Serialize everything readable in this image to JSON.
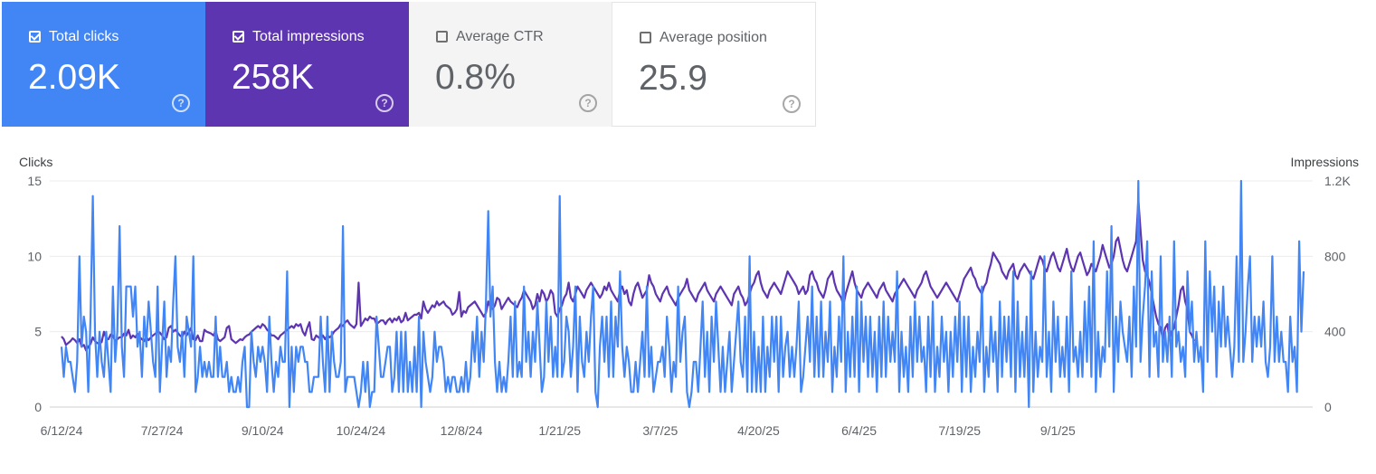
{
  "metrics": [
    {
      "label": "Total clicks",
      "value": "2.09K",
      "checked": true,
      "color": "#4285f4"
    },
    {
      "label": "Total impressions",
      "value": "258K",
      "checked": true,
      "color": "#5e35b1"
    },
    {
      "label": "Average CTR",
      "value": "0.8%",
      "checked": false,
      "color": "#f4f4f4"
    },
    {
      "label": "Average position",
      "value": "25.9",
      "checked": false,
      "color": "#ffffff"
    }
  ],
  "help_glyph": "?",
  "chart_data": {
    "type": "line",
    "title": "",
    "ylabel": "Clicks",
    "y2label": "Impressions",
    "ylim": [
      0,
      15
    ],
    "y2lim": [
      0,
      1200
    ],
    "yticks": [
      "0",
      "5",
      "10",
      "15"
    ],
    "y2ticks": [
      "0",
      "400",
      "800",
      "1.2K"
    ],
    "x_tick_labels": [
      "6/12/24",
      "7/27/24",
      "9/10/24",
      "10/24/24",
      "12/8/24",
      "1/21/25",
      "3/7/25",
      "4/20/25",
      "6/4/25",
      "7/19/25",
      "9/1/25"
    ],
    "x_tick_index": [
      0,
      45,
      90,
      134,
      179,
      223,
      268,
      312,
      357,
      402,
      446
    ],
    "series": [
      {
        "name": "Clicks",
        "axis": "left",
        "color": "#4285f4",
        "values": [
          4,
          2,
          4,
          3,
          3,
          2,
          1,
          3,
          10,
          4,
          6,
          5,
          1,
          6,
          14,
          5,
          2,
          5,
          3,
          2,
          5,
          3,
          1,
          8,
          3,
          5,
          12,
          4,
          2,
          8,
          8,
          8,
          6,
          8,
          4,
          5,
          2,
          6,
          4,
          7,
          5,
          3,
          2,
          8,
          1,
          4,
          7,
          2,
          4,
          3,
          7,
          10,
          4,
          3,
          5,
          2,
          6,
          5,
          4,
          10,
          1,
          2,
          4,
          2,
          3,
          2,
          3,
          2,
          2,
          6,
          2,
          4,
          2,
          2,
          3,
          1,
          2,
          1,
          1,
          2,
          1,
          3,
          4,
          0,
          0,
          5,
          3,
          2,
          4,
          3,
          4,
          3,
          1,
          6,
          3,
          1,
          3,
          2,
          4,
          3,
          3,
          9,
          0,
          4,
          1,
          4,
          3,
          4,
          4,
          3,
          3,
          1,
          1,
          2,
          2,
          2,
          6,
          3,
          1,
          6,
          1,
          5,
          3,
          2,
          2,
          3,
          12,
          1,
          2,
          2,
          2,
          2,
          1,
          0,
          1,
          3,
          1,
          3,
          0,
          1,
          1,
          6,
          4,
          2,
          2,
          3,
          4,
          4,
          1,
          2,
          5,
          1,
          5,
          1,
          5,
          1,
          3,
          1,
          4,
          1,
          6,
          0,
          5,
          3,
          2,
          1,
          2,
          5,
          3,
          4,
          4,
          3,
          1,
          2,
          1,
          2,
          2,
          1,
          1,
          2,
          1,
          3,
          1,
          2,
          5,
          3,
          6,
          2,
          5,
          3,
          7,
          13,
          6,
          8,
          3,
          1,
          3,
          1,
          2,
          1,
          3,
          6,
          2,
          7,
          2,
          3,
          2,
          8,
          3,
          5,
          2,
          5,
          3,
          7,
          4,
          1,
          2,
          7,
          3,
          6,
          2,
          4,
          2,
          14,
          2,
          3,
          6,
          5,
          2,
          4,
          8,
          1,
          6,
          3,
          2,
          5,
          3,
          6,
          8,
          1,
          0,
          4,
          6,
          3,
          6,
          2,
          7,
          2,
          6,
          4,
          9,
          4,
          2,
          4,
          3,
          1,
          1,
          3,
          1,
          3,
          5,
          2,
          8,
          2,
          4,
          1,
          2,
          3,
          3,
          4,
          2,
          6,
          4,
          1,
          3,
          2,
          8,
          3,
          5,
          6,
          1,
          0,
          1,
          3,
          3,
          1,
          4,
          7,
          2,
          5,
          1,
          6,
          3,
          7,
          4,
          1,
          4,
          1,
          3,
          5,
          1,
          3,
          5,
          7,
          3,
          2,
          6,
          1,
          10,
          1,
          5,
          1,
          4,
          1,
          6,
          1,
          4,
          2,
          6,
          3,
          6,
          1,
          6,
          2,
          4,
          5,
          2,
          4,
          2,
          4,
          7,
          1,
          2,
          4,
          6,
          3,
          8,
          2,
          6,
          2,
          7,
          2,
          5,
          3,
          7,
          1,
          4,
          2,
          6,
          3,
          10,
          1,
          5,
          2,
          6,
          2,
          8,
          1,
          7,
          3,
          6,
          2,
          6,
          2,
          5,
          1,
          6,
          2,
          7,
          2,
          6,
          3,
          5,
          3,
          9,
          1,
          5,
          2,
          4,
          1,
          6,
          2,
          7,
          3,
          6,
          3,
          4,
          1,
          6,
          2,
          7,
          1,
          4,
          2,
          6,
          3,
          5,
          1,
          5,
          2,
          6,
          3,
          7,
          1,
          6,
          2,
          6,
          1,
          4,
          2,
          5,
          3,
          8,
          1,
          4,
          2,
          6,
          3,
          5,
          1,
          7,
          2,
          6,
          3,
          6,
          2,
          9,
          1,
          7,
          2,
          5,
          2,
          6,
          0,
          9,
          1,
          5,
          2,
          4,
          3,
          10,
          2,
          5,
          1,
          7,
          3,
          6,
          2,
          4,
          2,
          6,
          1,
          9,
          3,
          4,
          2,
          5,
          2,
          7,
          3,
          8,
          2,
          11,
          1,
          5,
          2,
          4,
          3,
          9,
          4,
          12,
          1,
          6,
          3,
          7,
          5,
          4,
          3,
          6,
          2,
          8,
          4,
          15,
          3,
          6,
          8,
          11,
          2,
          9,
          4,
          5,
          2,
          10,
          3,
          5,
          3,
          6,
          2,
          11,
          4,
          5,
          3,
          4,
          2,
          9,
          5,
          7,
          3,
          5,
          3,
          4,
          1,
          11,
          3,
          9,
          5,
          8,
          2,
          7,
          4,
          8,
          4,
          6,
          4,
          2,
          4,
          10,
          3,
          15,
          3,
          5,
          8,
          10,
          3,
          6,
          4,
          6,
          4,
          7,
          3,
          2,
          4,
          10,
          3,
          6,
          3,
          5,
          3,
          3,
          1,
          6,
          3,
          4,
          1,
          11,
          5,
          9
        ]
      },
      {
        "name": "Impressions",
        "axis": "right",
        "color": "#5e35b1",
        "values": [
          375,
          360,
          330,
          340,
          350,
          365,
          355,
          340,
          360,
          320,
          330,
          300,
          320,
          335,
          370,
          350,
          340,
          335,
          345,
          400,
          365,
          360,
          385,
          380,
          350,
          360,
          370,
          370,
          390,
          380,
          410,
          365,
          380,
          370,
          390,
          370,
          360,
          350,
          370,
          355,
          370,
          380,
          390,
          400,
          395,
          380,
          360,
          370,
          420,
          430,
          400,
          410,
          395,
          380,
          370,
          400,
          380,
          400,
          420,
          360,
          355,
          380,
          350,
          350,
          410,
          400,
          395,
          390,
          380,
          405,
          360,
          350,
          360,
          370,
          420,
          430,
          360,
          350,
          340,
          350,
          360,
          355,
          370,
          380,
          385,
          400,
          410,
          420,
          430,
          420,
          440,
          430,
          410,
          400,
          380,
          380,
          370,
          360,
          380,
          390,
          400,
          410,
          420,
          430,
          420,
          440,
          430,
          440,
          400,
          380,
          420,
          450,
          360,
          355,
          380,
          370,
          360,
          380,
          360,
          380,
          370,
          380,
          400,
          410,
          420,
          440,
          430,
          450,
          460,
          440,
          430,
          420,
          440,
          660,
          430,
          450,
          470,
          460,
          480,
          470,
          470,
          440,
          450,
          460,
          460,
          440,
          460,
          470,
          450,
          470,
          460,
          480,
          450,
          460,
          500,
          460,
          470,
          480,
          490,
          490,
          500,
          470,
          560,
          520,
          500,
          520,
          540,
          530,
          560,
          540,
          550,
          560,
          540,
          530,
          520,
          490,
          500,
          520,
          610,
          480,
          510,
          500,
          530,
          540,
          550,
          560,
          540,
          520,
          500,
          480,
          500,
          560,
          530,
          520,
          540,
          580,
          570,
          520,
          540,
          560,
          580,
          560,
          550,
          540,
          530,
          560,
          580,
          620,
          600,
          580,
          560,
          520,
          540,
          600,
          560,
          620,
          600,
          560,
          580,
          620,
          600,
          500,
          480,
          520,
          540,
          580,
          600,
          660,
          580,
          560,
          600,
          640,
          620,
          600,
          580,
          620,
          640,
          660,
          640,
          620,
          600,
          580,
          600,
          640,
          620,
          660,
          620,
          600,
          580,
          560,
          620,
          640,
          600,
          620,
          560,
          540,
          600,
          640,
          660,
          620,
          580,
          600,
          620,
          700,
          660,
          640,
          600,
          580,
          560,
          600,
          620,
          640,
          600,
          580,
          560,
          540,
          580,
          600,
          620,
          640,
          680,
          620,
          600,
          580,
          560,
          600,
          620,
          640,
          660,
          620,
          600,
          580,
          560,
          600,
          620,
          640,
          620,
          600,
          580,
          560,
          540,
          600,
          620,
          640,
          600,
          580,
          540,
          560,
          600,
          640,
          660,
          700,
          720,
          660,
          620,
          600,
          580,
          620,
          640,
          660,
          640,
          620,
          600,
          640,
          680,
          720,
          700,
          680,
          660,
          640,
          600,
          620,
          640,
          600,
          620,
          700,
          720,
          680,
          660,
          620,
          600,
          580,
          620,
          680,
          700,
          720,
          660,
          620,
          600,
          580,
          540,
          600,
          640,
          680,
          720,
          660,
          620,
          600,
          580,
          620,
          640,
          660,
          640,
          620,
          600,
          580,
          620,
          640,
          660,
          620,
          600,
          580,
          560,
          600,
          620,
          640,
          660,
          680,
          660,
          640,
          620,
          600,
          580,
          620,
          640,
          660,
          700,
          720,
          680,
          640,
          620,
          600,
          580,
          600,
          620,
          640,
          660,
          640,
          620,
          600,
          580,
          560,
          600,
          640,
          680,
          700,
          720,
          740,
          700,
          680,
          640,
          620,
          600,
          640,
          660,
          720,
          760,
          820,
          800,
          780,
          760,
          720,
          700,
          680,
          720,
          740,
          760,
          700,
          680,
          720,
          740,
          760,
          740,
          720,
          700,
          680,
          720,
          760,
          800,
          780,
          740,
          720,
          760,
          800,
          820,
          780,
          740,
          720,
          760,
          800,
          840,
          780,
          740,
          720,
          760,
          800,
          820,
          780,
          740,
          700,
          720,
          760,
          740,
          720,
          760,
          800,
          860,
          820,
          780,
          740,
          760,
          800,
          880,
          900,
          840,
          780,
          740,
          720,
          760,
          800,
          840,
          880,
          1100,
          940,
          780,
          720,
          700,
          660,
          600,
          540,
          480,
          440,
          420,
          360,
          420,
          440,
          360,
          400,
          420,
          480,
          540,
          620,
          640,
          560,
          520,
          400,
          380,
          350
        ]
      }
    ]
  }
}
